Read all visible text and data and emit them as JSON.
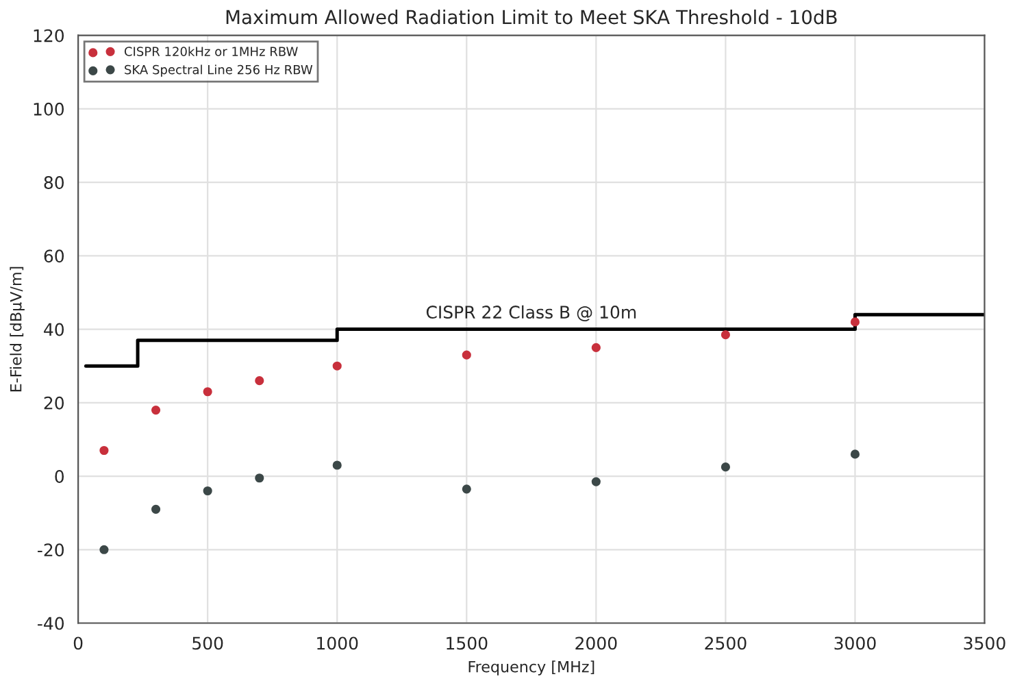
{
  "chart_data": {
    "type": "scatter",
    "title": "Maximum Allowed Radiation Limit to Meet SKA Threshold - 10dB",
    "xlabel": "Frequency [MHz]",
    "ylabel": "E-Field [dBμV/m]",
    "series": [
      {
        "name": "CISPR 120kHz or 1MHz RBW",
        "color": "#c8303c",
        "x": [
          100,
          300,
          500,
          700,
          1000,
          1500,
          2000,
          2500,
          3000
        ],
        "values": [
          7,
          18,
          23,
          26,
          30,
          33,
          35,
          38.5,
          42
        ]
      },
      {
        "name": "SKA Spectral Line 256 Hz RBW",
        "color": "#3c4848",
        "x": [
          100,
          300,
          500,
          700,
          1000,
          1500,
          2000,
          2500,
          3000
        ],
        "values": [
          -20,
          -9,
          -4,
          -0.5,
          3,
          -3.5,
          -1.5,
          2.5,
          6
        ]
      },
      {
        "type": "step",
        "color": "#000000",
        "marker": "none",
        "x": [
          30,
          230,
          1000,
          3000,
          3500
        ],
        "values": [
          30,
          37,
          40,
          44,
          44
        ]
      }
    ],
    "annotations": [
      {
        "text": "CISPR 22 Class B @ 10m",
        "x": 1750,
        "y": 42
      }
    ],
    "xlim": [
      0,
      3500
    ],
    "xticks": [
      0,
      500,
      1000,
      1500,
      2000,
      2500,
      3000,
      3500
    ],
    "ylim": [
      -40,
      120
    ],
    "yticks": [
      -40,
      -20,
      0,
      20,
      40,
      60,
      80,
      100,
      120
    ],
    "grid": true,
    "legend": "top left",
    "marker": "circle"
  }
}
